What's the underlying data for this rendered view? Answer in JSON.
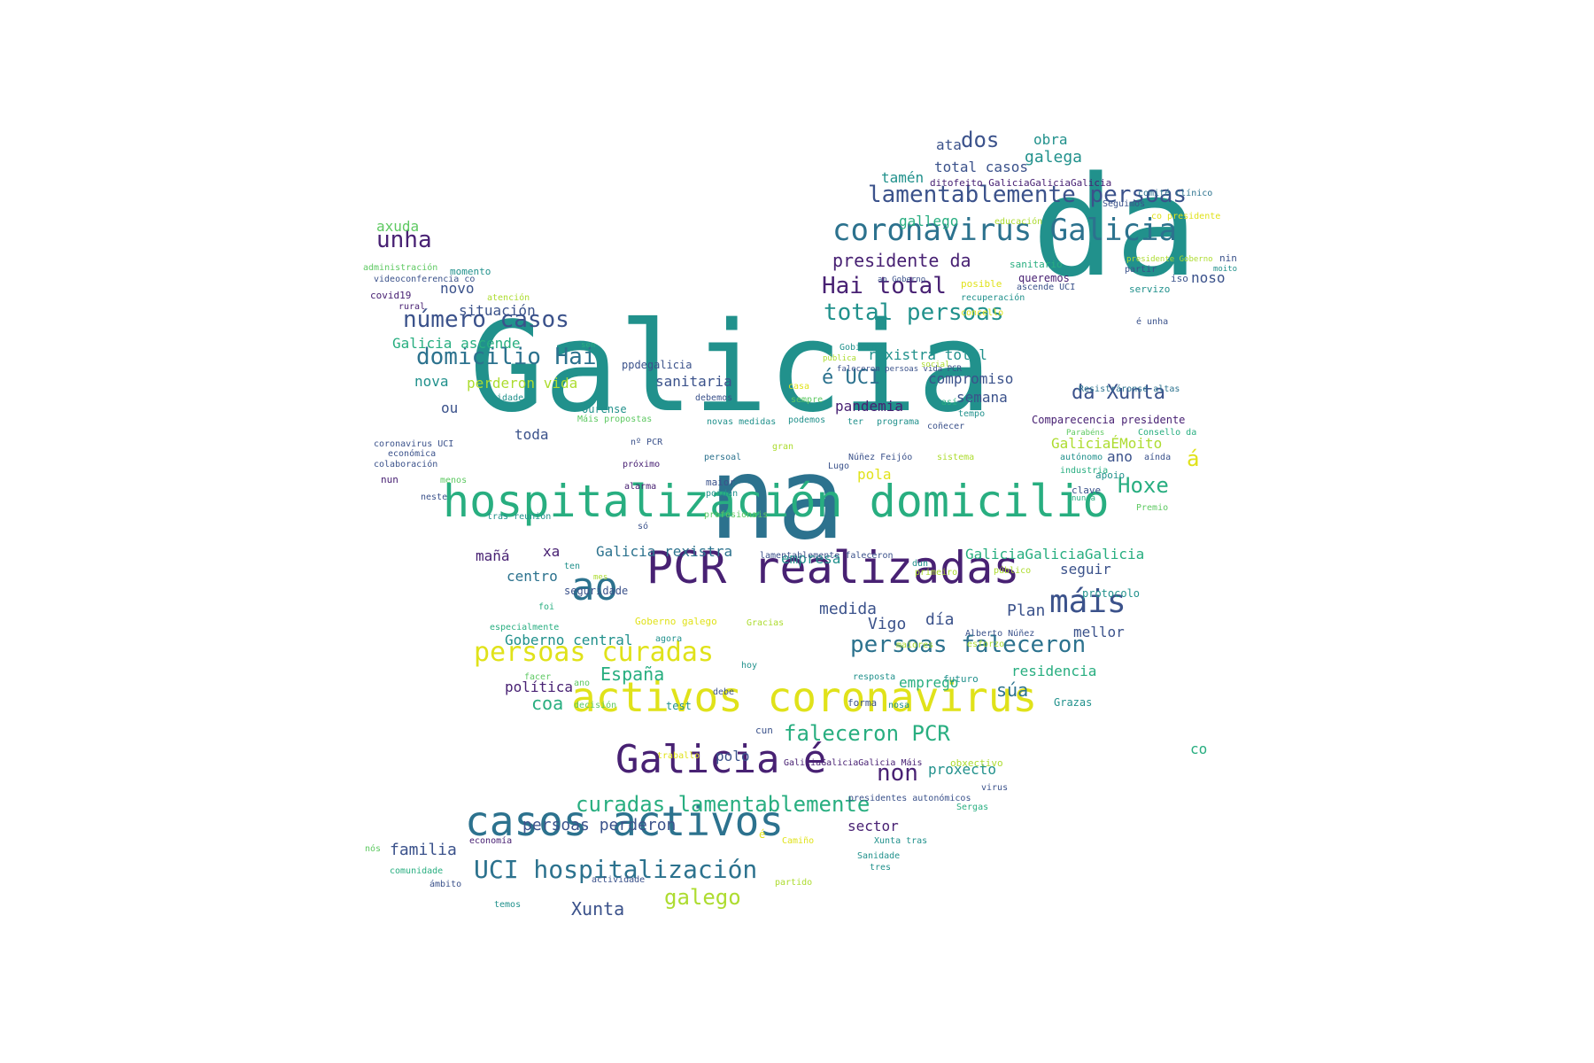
{
  "palette": {
    "dark_purple": "#482173",
    "indigo": "#3b528b",
    "blue": "#2c728e",
    "teal": "#21918c",
    "green_teal": "#28ae80",
    "green": "#5ec962",
    "lime": "#addc30",
    "yellow": "#e0e21a",
    "near_black": "#440154"
  },
  "words": [
    {
      "text": "Galicia",
      "color": "teal"
    },
    {
      "text": "da",
      "color": "teal"
    },
    {
      "text": "na",
      "color": "blue"
    },
    {
      "text": "PCR realizadas",
      "color": "dark_purple"
    },
    {
      "text": "hospitalización domicilio",
      "color": "green_teal"
    },
    {
      "text": "activos coronavirus",
      "color": "yellow"
    },
    {
      "text": "casos activos",
      "color": "blue"
    },
    {
      "text": "Galicia é",
      "color": "dark_purple"
    },
    {
      "text": "coronavirus Galicia",
      "color": "blue"
    },
    {
      "text": "ao",
      "color": "blue"
    },
    {
      "text": "máis",
      "color": "indigo"
    },
    {
      "text": "persoas curadas",
      "color": "yellow"
    },
    {
      "text": "persoas faleceron",
      "color": "blue"
    },
    {
      "text": "curadas lamentablemente",
      "color": "green_teal"
    },
    {
      "text": "UCI hospitalización",
      "color": "blue"
    },
    {
      "text": "lamentablemente persoas",
      "color": "indigo"
    },
    {
      "text": "total persoas",
      "color": "teal"
    },
    {
      "text": "número casos",
      "color": "indigo"
    },
    {
      "text": "domicilio Hai",
      "color": "blue"
    },
    {
      "text": "Hai total",
      "color": "dark_purple"
    },
    {
      "text": "faleceron PCR",
      "color": "green_teal"
    },
    {
      "text": "unha",
      "color": "dark_purple"
    },
    {
      "text": "presidente da",
      "color": "dark_purple"
    },
    {
      "text": "da Xunta",
      "color": "indigo"
    },
    {
      "text": "é UCI",
      "color": "blue"
    },
    {
      "text": "non",
      "color": "dark_purple"
    },
    {
      "text": "dos",
      "color": "indigo"
    },
    {
      "text": "Hoxe",
      "color": "green_teal"
    },
    {
      "text": "galego",
      "color": "lime"
    },
    {
      "text": "súa",
      "color": "blue"
    },
    {
      "text": "coa",
      "color": "green_teal"
    },
    {
      "text": "á",
      "color": "yellow"
    },
    {
      "text": "España",
      "color": "green_teal"
    },
    {
      "text": "Xunta",
      "color": "indigo"
    },
    {
      "text": "familia",
      "color": "indigo"
    },
    {
      "text": "persoas perderon",
      "color": "indigo"
    },
    {
      "text": "galega",
      "color": "teal"
    },
    {
      "text": "día",
      "color": "indigo"
    },
    {
      "text": "Vigo",
      "color": "indigo"
    },
    {
      "text": "medida",
      "color": "indigo"
    },
    {
      "text": "Plan",
      "color": "indigo"
    },
    {
      "text": "mellor",
      "color": "indigo"
    },
    {
      "text": "residencia",
      "color": "green_teal"
    },
    {
      "text": "emprego",
      "color": "green_teal"
    },
    {
      "text": "proxecto",
      "color": "teal"
    },
    {
      "text": "sector",
      "color": "dark_purple"
    },
    {
      "text": "polo",
      "color": "indigo"
    },
    {
      "text": "política",
      "color": "dark_purple"
    },
    {
      "text": "Goberno central",
      "color": "teal"
    },
    {
      "text": "centro",
      "color": "blue"
    },
    {
      "text": "seguir",
      "color": "indigo"
    },
    {
      "text": "empresa",
      "color": "teal"
    },
    {
      "text": "Galicia rexistra",
      "color": "blue"
    },
    {
      "text": "GaliciaGaliciaGalicia",
      "color": "green_teal"
    },
    {
      "text": "mañá",
      "color": "dark_purple"
    },
    {
      "text": "xa",
      "color": "dark_purple"
    },
    {
      "text": "toda",
      "color": "indigo"
    },
    {
      "text": "ou",
      "color": "indigo"
    },
    {
      "text": "perderon vida",
      "color": "lime"
    },
    {
      "text": "nova",
      "color": "teal"
    },
    {
      "text": "sanitaria",
      "color": "indigo"
    },
    {
      "text": "pandemia",
      "color": "dark_purple"
    },
    {
      "text": "semana",
      "color": "indigo"
    },
    {
      "text": "compromiso",
      "color": "indigo"
    },
    {
      "text": "rexistra total",
      "color": "teal"
    },
    {
      "text": "situación",
      "color": "indigo"
    },
    {
      "text": "novo",
      "color": "indigo"
    },
    {
      "text": "Galicia ascende",
      "color": "green_teal"
    },
    {
      "text": "axuda",
      "color": "green"
    },
    {
      "text": "ano",
      "color": "indigo"
    },
    {
      "text": "pola",
      "color": "yellow"
    },
    {
      "text": "GaliciaÉMoito",
      "color": "lime"
    },
    {
      "text": "tamén",
      "color": "teal"
    },
    {
      "text": "total casos",
      "color": "indigo"
    },
    {
      "text": "ata",
      "color": "indigo"
    },
    {
      "text": "obra",
      "color": "teal"
    },
    {
      "text": "gallego",
      "color": "green_teal"
    },
    {
      "text": "noso",
      "color": "indigo"
    },
    {
      "text": "co",
      "color": "green_teal"
    },
    {
      "text": "Comparecencia presidente",
      "color": "dark_purple"
    },
    {
      "text": "ditofeito GaliciaGaliciaGalicia",
      "color": "dark_purple"
    },
    {
      "text": "Resistráronse altas",
      "color": "blue"
    },
    {
      "text": "comité clínico",
      "color": "blue"
    },
    {
      "text": "Seguimos",
      "color": "indigo"
    },
    {
      "text": "co presidente",
      "color": "yellow"
    },
    {
      "text": "educación",
      "color": "lime"
    },
    {
      "text": "administración",
      "color": "green"
    },
    {
      "text": "momento",
      "color": "teal"
    },
    {
      "text": "videoconferencia co",
      "color": "indigo"
    },
    {
      "text": "covid19",
      "color": "dark_purple"
    },
    {
      "text": "rural",
      "color": "dark_purple"
    },
    {
      "text": "atención",
      "color": "lime"
    },
    {
      "text": "sanitario",
      "color": "green_teal"
    },
    {
      "text": "queremos",
      "color": "dark_purple"
    },
    {
      "text": "posible",
      "color": "yellow"
    },
    {
      "text": "recuperación",
      "color": "teal"
    },
    {
      "text": "ascende UCI",
      "color": "indigo"
    },
    {
      "text": "iso",
      "color": "indigo"
    },
    {
      "text": "servizo",
      "color": "teal"
    },
    {
      "text": "partir",
      "color": "indigo"
    },
    {
      "text": "presidente Goberno",
      "color": "lime"
    },
    {
      "text": "nin",
      "color": "indigo"
    },
    {
      "text": "moito",
      "color": "teal"
    },
    {
      "text": "concello",
      "color": "yellow"
    },
    {
      "text": "é unha",
      "color": "indigo"
    },
    {
      "text": "sen",
      "color": "green_teal"
    },
    {
      "text": "ppdegalicia",
      "color": "indigo"
    },
    {
      "text": "Gobierno",
      "color": "teal"
    },
    {
      "text": "pública",
      "color": "lime"
    },
    {
      "text": "social",
      "color": "lime"
    },
    {
      "text": "faleceron persoas vida PCR",
      "color": "indigo"
    },
    {
      "text": "ao Goberno",
      "color": "indigo"
    },
    {
      "text": "casa",
      "color": "yellow"
    },
    {
      "text": "sempre",
      "color": "green"
    },
    {
      "text": "así",
      "color": "green_teal"
    },
    {
      "text": "tempo",
      "color": "teal"
    },
    {
      "text": "cidade",
      "color": "teal"
    },
    {
      "text": "debemos",
      "color": "indigo"
    },
    {
      "text": "Ourense",
      "color": "teal"
    },
    {
      "text": "Máis propostas",
      "color": "green"
    },
    {
      "text": "novas medidas",
      "color": "teal"
    },
    {
      "text": "podemos",
      "color": "teal"
    },
    {
      "text": "ter",
      "color": "teal"
    },
    {
      "text": "programa",
      "color": "teal"
    },
    {
      "text": "coñecer",
      "color": "indigo"
    },
    {
      "text": "nº PCR",
      "color": "indigo"
    },
    {
      "text": "gran",
      "color": "lime"
    },
    {
      "text": "coronavirus UCI",
      "color": "indigo"
    },
    {
      "text": "colaboración",
      "color": "indigo"
    },
    {
      "text": "nun",
      "color": "dark_purple"
    },
    {
      "text": "menos",
      "color": "green"
    },
    {
      "text": "neste",
      "color": "indigo"
    },
    {
      "text": "económica",
      "color": "indigo"
    },
    {
      "text": "próximo",
      "color": "dark_purple"
    },
    {
      "text": "persoal",
      "color": "blue"
    },
    {
      "text": "maior",
      "color": "indigo"
    },
    {
      "text": "poidan",
      "color": "teal"
    },
    {
      "text": "alarma",
      "color": "dark_purple"
    },
    {
      "text": "Lugo",
      "color": "indigo"
    },
    {
      "text": "Núñez Feijóo",
      "color": "indigo"
    },
    {
      "text": "sistema",
      "color": "lime"
    },
    {
      "text": "Parabéns",
      "color": "green"
    },
    {
      "text": "Consello da",
      "color": "green_teal"
    },
    {
      "text": "autónomo",
      "color": "teal"
    },
    {
      "text": "aínda",
      "color": "indigo"
    },
    {
      "text": "industria",
      "color": "green_teal"
    },
    {
      "text": "apoio",
      "color": "teal"
    },
    {
      "text": "clave",
      "color": "indigo"
    },
    {
      "text": "nunca",
      "color": "green_teal"
    },
    {
      "text": "Premio",
      "color": "green"
    },
    {
      "text": "tras reunión",
      "color": "teal"
    },
    {
      "text": "só",
      "color": "indigo"
    },
    {
      "text": "profesionais",
      "color": "green"
    },
    {
      "text": "lamentablemente faleceron",
      "color": "indigo"
    },
    {
      "text": "ten",
      "color": "teal"
    },
    {
      "text": "mes",
      "color": "lime"
    },
    {
      "text": "seguridade",
      "color": "indigo"
    },
    {
      "text": "dun",
      "color": "teal"
    },
    {
      "text": "primeiro",
      "color": "lime"
    },
    {
      "text": "público",
      "color": "lime"
    },
    {
      "text": "protocolo",
      "color": "teal"
    },
    {
      "text": "foi",
      "color": "green_teal"
    },
    {
      "text": "especialmente",
      "color": "green_teal"
    },
    {
      "text": "Goberno galego",
      "color": "yellow"
    },
    {
      "text": "Gracias",
      "color": "lime"
    },
    {
      "text": "agora",
      "color": "teal"
    },
    {
      "text": "Alberto Núñez",
      "color": "indigo"
    },
    {
      "text": "maiores",
      "color": "lime"
    },
    {
      "text": "esforzo",
      "color": "lime"
    },
    {
      "text": "hoy",
      "color": "teal"
    },
    {
      "text": "facer",
      "color": "green"
    },
    {
      "text": "ano",
      "color": "green"
    },
    {
      "text": "resposta",
      "color": "teal"
    },
    {
      "text": "futuro",
      "color": "teal"
    },
    {
      "text": "debe",
      "color": "indigo"
    },
    {
      "text": "decisión",
      "color": "green"
    },
    {
      "text": "test",
      "color": "teal"
    },
    {
      "text": "forma",
      "color": "indigo"
    },
    {
      "text": "nosa",
      "color": "teal"
    },
    {
      "text": "Grazas",
      "color": "teal"
    },
    {
      "text": "cun",
      "color": "indigo"
    },
    {
      "text": "traballo",
      "color": "yellow"
    },
    {
      "text": "GaliciaGaliciaGalicia Máis",
      "color": "dark_purple"
    },
    {
      "text": "obxectivo",
      "color": "lime"
    },
    {
      "text": "virus",
      "color": "indigo"
    },
    {
      "text": "presidentes autonómicos",
      "color": "indigo"
    },
    {
      "text": "Sergas",
      "color": "green_teal"
    },
    {
      "text": "economía",
      "color": "dark_purple"
    },
    {
      "text": "é",
      "color": "yellow"
    },
    {
      "text": "Camiño",
      "color": "yellow"
    },
    {
      "text": "Xunta tras",
      "color": "teal"
    },
    {
      "text": "nós",
      "color": "green"
    },
    {
      "text": "comunidade",
      "color": "green_teal"
    },
    {
      "text": "Sanidade",
      "color": "teal"
    },
    {
      "text": "tres",
      "color": "teal"
    },
    {
      "text": "ámbito",
      "color": "indigo"
    },
    {
      "text": "actividade",
      "color": "indigo"
    },
    {
      "text": "partido",
      "color": "lime"
    },
    {
      "text": "temos",
      "color": "teal"
    }
  ]
}
